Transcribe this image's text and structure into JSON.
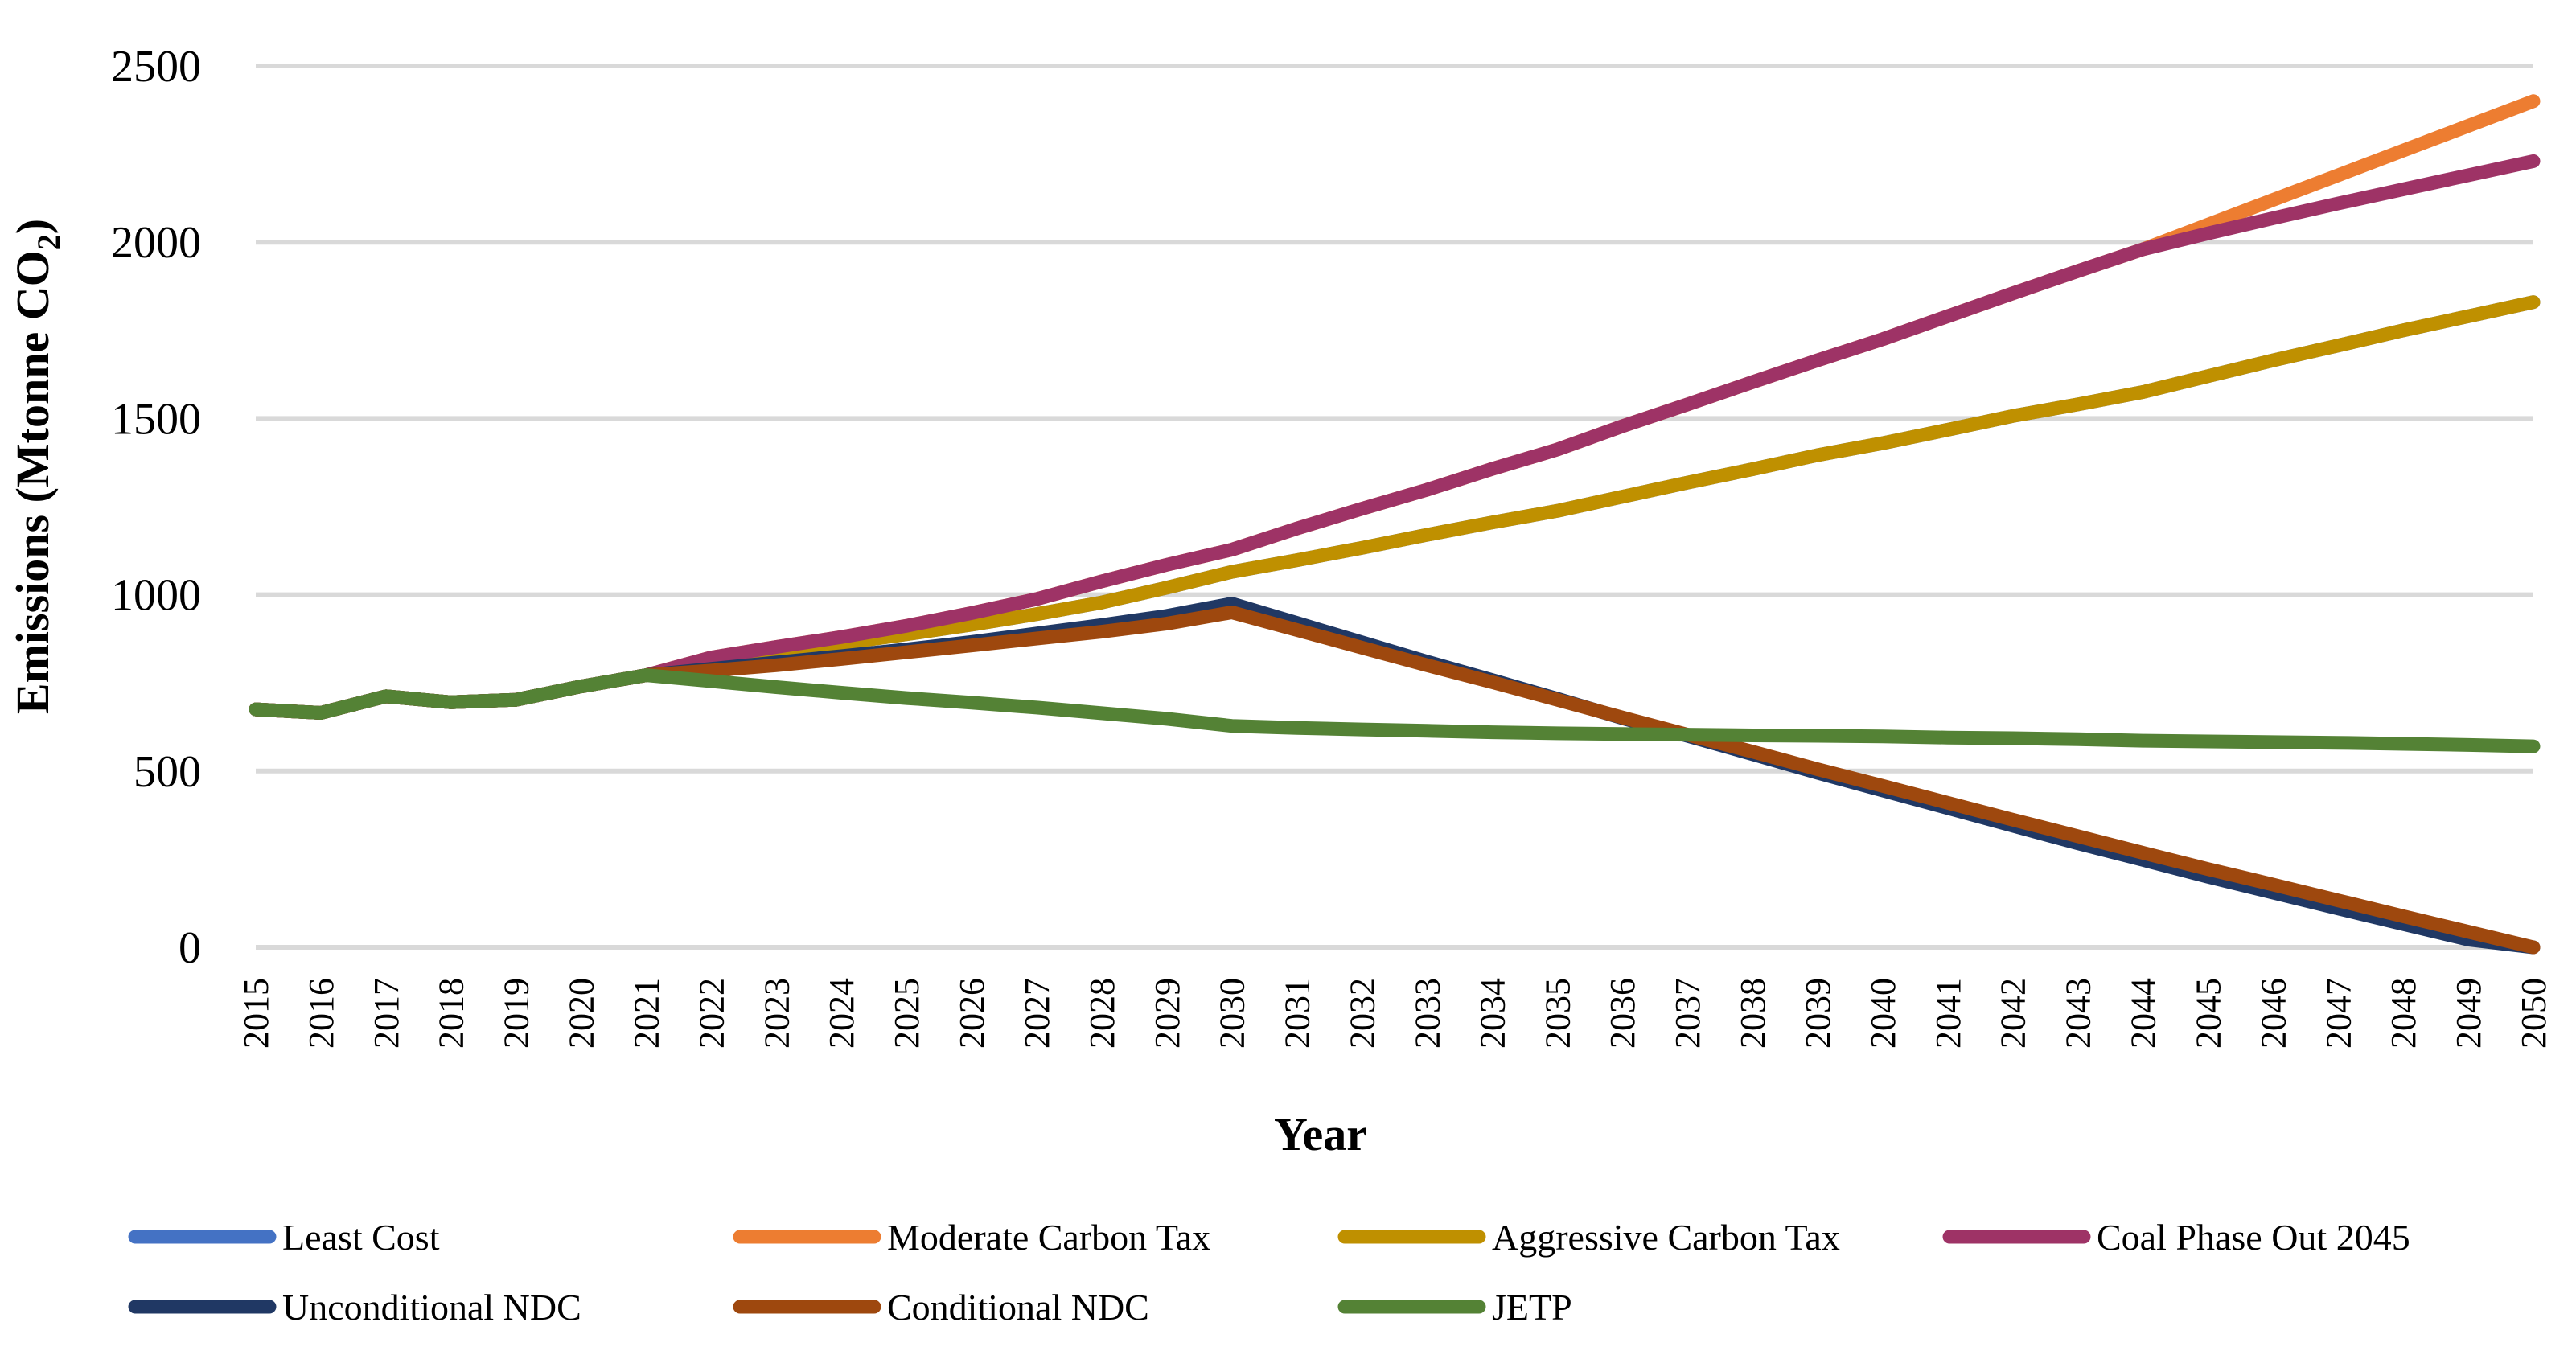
{
  "chart_data": {
    "type": "line",
    "title": "",
    "xlabel": "Year",
    "ylabel_main": "Emissions (Mtonne CO",
    "ylabel_sub": "2",
    "ylabel_end": ")",
    "ylim": [
      0,
      2500
    ],
    "yticks": [
      0,
      500,
      1000,
      1500,
      2000,
      2500
    ],
    "grid": true,
    "legend_position": "bottom",
    "x": [
      "2015",
      "2016",
      "2017",
      "2018",
      "2019",
      "2020",
      "2021",
      "2022",
      "2023",
      "2024",
      "2025",
      "2026",
      "2027",
      "2028",
      "2029",
      "2030",
      "2031",
      "2032",
      "2033",
      "2034",
      "2035",
      "2036",
      "2037",
      "2038",
      "2039",
      "2040",
      "2041",
      "2042",
      "2043",
      "2044",
      "2045",
      "2046",
      "2047",
      "2048",
      "2049",
      "2050"
    ],
    "series": [
      {
        "name": "Least Cost",
        "color": "#4472c4",
        "values": [
          675,
          665,
          712,
          695,
          702,
          740,
          772,
          812,
          838,
          862,
          888,
          915,
          945,
          978,
          1020,
          1065,
          1098,
          1133,
          1170,
          1205,
          1238,
          1278,
          1318,
          1356,
          1396,
          1430,
          1468,
          1507,
          1540,
          1575,
          1620,
          1665,
          1707,
          1750,
          1790,
          1830
        ]
      },
      {
        "name": "Moderate Carbon Tax",
        "color": "#ed7d31",
        "values": [
          675,
          665,
          712,
          695,
          702,
          740,
          772,
          822,
          852,
          880,
          912,
          948,
          988,
          1038,
          1085,
          1128,
          1188,
          1244,
          1298,
          1357,
          1412,
          1478,
          1540,
          1603,
          1665,
          1725,
          1790,
          1855,
          1918,
          1980,
          2050,
          2120,
          2190,
          2260,
          2330,
          2400
        ]
      },
      {
        "name": "Aggressive Carbon Tax",
        "color": "#bf9000",
        "values": [
          675,
          665,
          712,
          695,
          702,
          740,
          772,
          812,
          838,
          862,
          888,
          915,
          945,
          978,
          1020,
          1065,
          1098,
          1133,
          1170,
          1205,
          1238,
          1278,
          1318,
          1356,
          1396,
          1430,
          1468,
          1507,
          1540,
          1575,
          1620,
          1665,
          1707,
          1750,
          1790,
          1830
        ]
      },
      {
        "name": "Coal Phase Out 2045",
        "color": "#9e3366",
        "values": [
          675,
          665,
          712,
          695,
          702,
          740,
          772,
          822,
          852,
          880,
          912,
          948,
          988,
          1038,
          1085,
          1128,
          1188,
          1244,
          1298,
          1357,
          1412,
          1478,
          1540,
          1603,
          1665,
          1725,
          1790,
          1855,
          1918,
          1980,
          2025,
          2068,
          2110,
          2150,
          2190,
          2230
        ]
      },
      {
        "name": "Unconditional NDC",
        "color": "#203864",
        "values": [
          675,
          665,
          712,
          695,
          702,
          740,
          772,
          790,
          808,
          826,
          845,
          866,
          890,
          914,
          940,
          975,
          920,
          865,
          810,
          758,
          705,
          650,
          600,
          548,
          495,
          445,
          395,
          345,
          295,
          248,
          200,
          155,
          110,
          66,
          22,
          0
        ]
      },
      {
        "name": "Conditional NDC",
        "color": "#9e480e",
        "values": [
          675,
          665,
          712,
          695,
          702,
          740,
          772,
          785,
          800,
          818,
          837,
          856,
          876,
          895,
          918,
          950,
          900,
          850,
          800,
          752,
          702,
          652,
          603,
          555,
          505,
          458,
          410,
          362,
          315,
          268,
          222,
          178,
          133,
          88,
          44,
          0
        ]
      },
      {
        "name": "JETP",
        "color": "#548235",
        "values": [
          675,
          665,
          712,
          695,
          702,
          740,
          772,
          755,
          738,
          722,
          707,
          694,
          680,
          664,
          648,
          628,
          622,
          618,
          614,
          610,
          607,
          605,
          603,
          601,
          600,
          598,
          595,
          593,
          590,
          586,
          584,
          582,
          580,
          577,
          574,
          570
        ]
      }
    ]
  }
}
